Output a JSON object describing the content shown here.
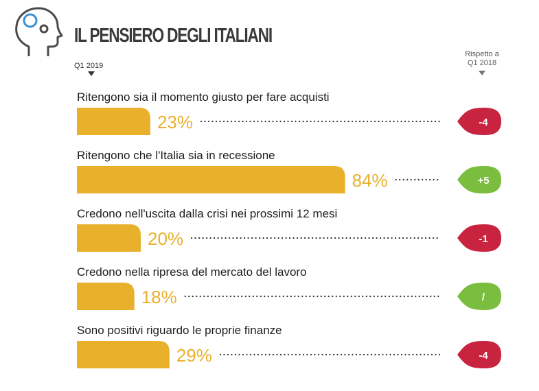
{
  "title": "IL PENSIERO DEGLI ITALIANI",
  "column_left": "Q1 2019",
  "column_right": [
    "Rispetto a",
    "Q1 2018"
  ],
  "colors": {
    "bar": "#e9b02c",
    "negative": "#c8233f",
    "positive": "#7bbd3e",
    "icon": "#4a4a4a",
    "icon_accent": "#3a8fd1"
  },
  "icon": "head-thought-icon",
  "chart_data": {
    "type": "bar",
    "orientation": "horizontal",
    "xlim": [
      0,
      100
    ],
    "unit": "%",
    "categories": [
      "Ritengono sia il momento giusto per fare acquisti",
      "Ritengono che l'Italia sia in recessione",
      "Credono nell'uscita dalla crisi nei prossimi 12 mesi",
      "Credono nella ripresa del mercato del lavoro",
      "Sono positivi riguardo le proprie finanze"
    ],
    "values": [
      23,
      84,
      20,
      18,
      29
    ],
    "value_labels": [
      "23%",
      "84%",
      "20%",
      "18%",
      "29%"
    ],
    "changes": [
      "-4",
      "+5",
      "-1",
      "/",
      "-4"
    ],
    "change_sentiment": [
      "negative",
      "positive",
      "negative",
      "positive",
      "negative"
    ]
  }
}
